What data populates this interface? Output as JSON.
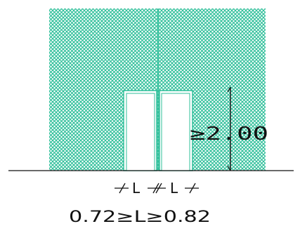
{
  "drawing": {
    "height_label": "≥2.00",
    "width_marks": [
      "L",
      "L"
    ],
    "width_formula": "0.72≥L≥0.82"
  },
  "colors": {
    "hatch": "#2fbf9a",
    "wall_background": "#ffffff",
    "line": "#111111"
  }
}
